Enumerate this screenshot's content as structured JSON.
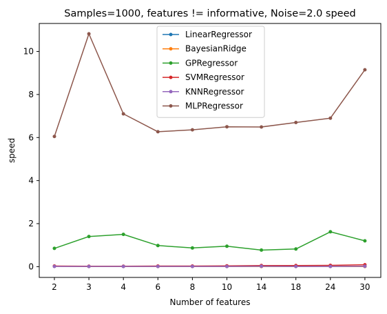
{
  "chart_data": {
    "type": "line",
    "title": "Samples=1000, features != informative, Noise=2.0 speed",
    "xlabel": "Number of features",
    "ylabel": "speed",
    "categories": [
      "2",
      "3",
      "4",
      "6",
      "8",
      "10",
      "14",
      "18",
      "24",
      "30"
    ],
    "ylim": [
      -0.5,
      11.3
    ],
    "yticks": [
      0,
      2,
      4,
      6,
      8,
      10
    ],
    "grid": false,
    "legend_position": "top-center",
    "series": [
      {
        "name": "LinearRegressor",
        "color": "#1f77b4",
        "values": [
          0.02,
          0.01,
          0.01,
          0.01,
          0.01,
          0.01,
          0.01,
          0.01,
          0.01,
          0.01
        ]
      },
      {
        "name": "BayesianRidge",
        "color": "#ff7f0e",
        "values": [
          0.02,
          0.01,
          0.01,
          0.01,
          0.01,
          0.01,
          0.01,
          0.01,
          0.01,
          0.01
        ]
      },
      {
        "name": "GPRegressor",
        "color": "#2ca02c",
        "values": [
          0.85,
          1.4,
          1.5,
          0.98,
          0.87,
          0.95,
          0.77,
          0.82,
          1.62,
          1.2
        ]
      },
      {
        "name": "SVMRegressor",
        "color": "#d62728",
        "values": [
          0.03,
          0.02,
          0.02,
          0.03,
          0.03,
          0.04,
          0.05,
          0.05,
          0.06,
          0.09
        ]
      },
      {
        "name": "KNNRegressor",
        "color": "#9467bd",
        "values": [
          0.01,
          0.01,
          0.01,
          0.01,
          0.01,
          0.01,
          0.02,
          0.01,
          0.01,
          0.02
        ]
      },
      {
        "name": "MLPRegressor",
        "color": "#8c564b",
        "values": [
          6.05,
          10.82,
          7.1,
          6.27,
          6.36,
          6.5,
          6.49,
          6.7,
          6.9,
          9.15
        ]
      }
    ]
  }
}
